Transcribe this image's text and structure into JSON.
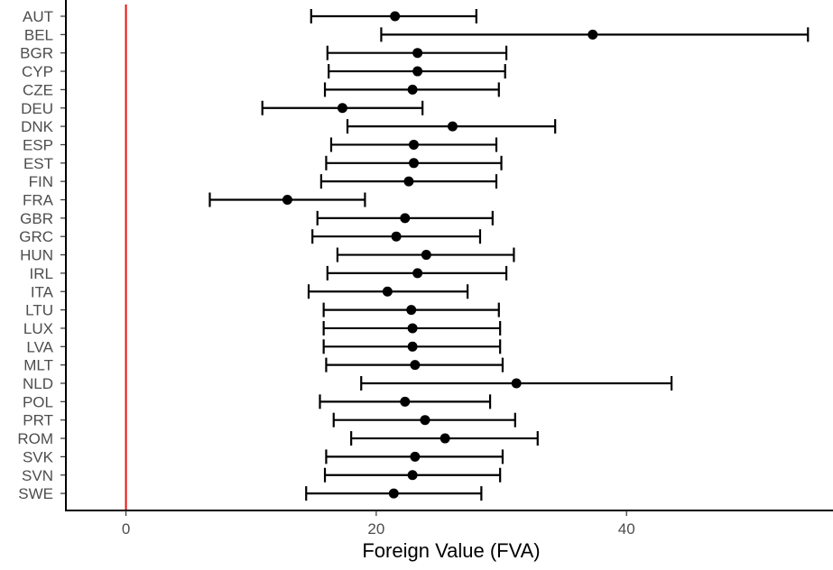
{
  "chart_data": {
    "type": "scatter",
    "style": "point with horizontal error bars",
    "title": "",
    "xlabel": "Foreign Value (FVA)",
    "ylabel": "",
    "xlim": [
      -4.8,
      56.5
    ],
    "x_ticks": [
      0,
      20,
      40
    ],
    "x_tick_labels": [
      "0",
      "20",
      "40"
    ],
    "reference_line": {
      "x": 0,
      "color": "#e8110f"
    },
    "grid": false,
    "series": [
      {
        "points": [
          {
            "country": "AUT",
            "value": 21.5,
            "lower": 14.8,
            "upper": 28.0
          },
          {
            "country": "BEL",
            "value": 37.3,
            "lower": 20.4,
            "upper": 54.5
          },
          {
            "country": "BGR",
            "value": 23.3,
            "lower": 16.1,
            "upper": 30.4
          },
          {
            "country": "CYP",
            "value": 23.3,
            "lower": 16.2,
            "upper": 30.3
          },
          {
            "country": "CZE",
            "value": 22.9,
            "lower": 15.9,
            "upper": 29.8
          },
          {
            "country": "DEU",
            "value": 17.3,
            "lower": 10.9,
            "upper": 23.7
          },
          {
            "country": "DNK",
            "value": 26.1,
            "lower": 17.7,
            "upper": 34.3
          },
          {
            "country": "ESP",
            "value": 23.0,
            "lower": 16.4,
            "upper": 29.6
          },
          {
            "country": "EST",
            "value": 23.0,
            "lower": 16.0,
            "upper": 30.0
          },
          {
            "country": "FIN",
            "value": 22.6,
            "lower": 15.6,
            "upper": 29.6
          },
          {
            "country": "FRA",
            "value": 12.9,
            "lower": 6.7,
            "upper": 19.1
          },
          {
            "country": "GBR",
            "value": 22.3,
            "lower": 15.3,
            "upper": 29.3
          },
          {
            "country": "GRC",
            "value": 21.6,
            "lower": 14.9,
            "upper": 28.3
          },
          {
            "country": "HUN",
            "value": 24.0,
            "lower": 16.9,
            "upper": 31.0
          },
          {
            "country": "IRL",
            "value": 23.3,
            "lower": 16.1,
            "upper": 30.4
          },
          {
            "country": "ITA",
            "value": 20.9,
            "lower": 14.6,
            "upper": 27.3
          },
          {
            "country": "LTU",
            "value": 22.8,
            "lower": 15.8,
            "upper": 29.8
          },
          {
            "country": "LUX",
            "value": 22.9,
            "lower": 15.8,
            "upper": 29.9
          },
          {
            "country": "LVA",
            "value": 22.9,
            "lower": 15.8,
            "upper": 29.9
          },
          {
            "country": "MLT",
            "value": 23.1,
            "lower": 16.0,
            "upper": 30.1
          },
          {
            "country": "NLD",
            "value": 31.2,
            "lower": 18.8,
            "upper": 43.6
          },
          {
            "country": "POL",
            "value": 22.3,
            "lower": 15.5,
            "upper": 29.1
          },
          {
            "country": "PRT",
            "value": 23.9,
            "lower": 16.6,
            "upper": 31.1
          },
          {
            "country": "ROM",
            "value": 25.5,
            "lower": 18.0,
            "upper": 32.9
          },
          {
            "country": "SVK",
            "value": 23.1,
            "lower": 16.0,
            "upper": 30.1
          },
          {
            "country": "SVN",
            "value": 22.9,
            "lower": 15.9,
            "upper": 29.9
          },
          {
            "country": "SWE",
            "value": 21.4,
            "lower": 14.4,
            "upper": 28.4
          }
        ]
      }
    ]
  }
}
